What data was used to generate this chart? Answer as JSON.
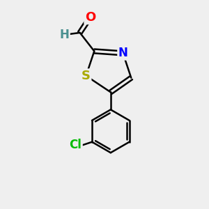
{
  "background_color": "#efefef",
  "bond_color": "#000000",
  "bond_width": 1.8,
  "atom_colors": {
    "O": "#ff0000",
    "N": "#0000ff",
    "S": "#aaaa00",
    "H": "#4a9090",
    "Cl": "#00bb00",
    "C": "#000000"
  },
  "font_size": 12,
  "figsize": [
    3.0,
    3.0
  ],
  "dpi": 100
}
